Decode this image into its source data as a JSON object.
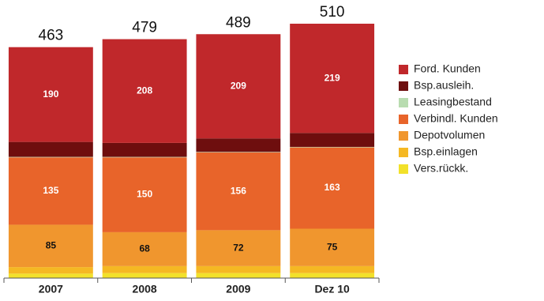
{
  "chart_data": {
    "type": "stacked_bar",
    "categories": [
      "2007",
      "2008",
      "2009",
      "Dez 10"
    ],
    "totals": [
      463,
      479,
      489,
      510
    ],
    "series": [
      {
        "name": "Ford. Kunden",
        "color": "#c0282b",
        "label_color": "#ffffff",
        "show_values": true,
        "values": [
          190,
          208,
          209,
          219
        ]
      },
      {
        "name": "Bsp.ausleih.",
        "color": "#6e0e0e",
        "show_values": false,
        "values": [
          30,
          28,
          27,
          28
        ]
      },
      {
        "name": "Leasingbestand",
        "color": "#b8dcb0",
        "show_values": false,
        "values": [
          1,
          1,
          1,
          1
        ]
      },
      {
        "name": "Verbindl. Kunden",
        "color": "#e8642a",
        "label_color": "#ffffff",
        "show_values": true,
        "values": [
          135,
          150,
          156,
          163
        ]
      },
      {
        "name": "Depotvolumen",
        "color": "#f0962e",
        "label_color": "#111111",
        "show_values": true,
        "values": [
          85,
          68,
          72,
          75
        ]
      },
      {
        "name": "Bsp.einlagen",
        "color": "#f5b823",
        "show_values": false,
        "values": [
          13,
          14,
          14,
          14
        ]
      },
      {
        "name": "Vers.rückk.",
        "color": "#f2e12a",
        "show_values": false,
        "values": [
          9,
          10,
          10,
          10
        ]
      }
    ]
  }
}
